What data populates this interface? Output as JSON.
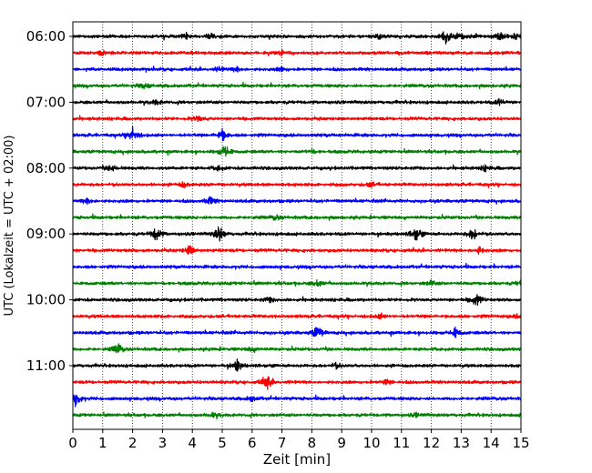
{
  "chart_data": {
    "type": "line",
    "xlabel": "Zeit  [min]",
    "ylabel": "UTC (Lokalzeit = UTC + 02:00)",
    "xlim": [
      0,
      15
    ],
    "x_ticks": [
      "0",
      "1",
      "2",
      "3",
      "4",
      "5",
      "6",
      "7",
      "8",
      "9",
      "10",
      "11",
      "12",
      "13",
      "14",
      "15"
    ],
    "y_ticks": [
      "06:00",
      "07:00",
      "08:00",
      "09:00",
      "10:00",
      "11:00"
    ],
    "grid_x": true,
    "trace_colors": [
      "#000000",
      "#ff0000",
      "#0000ff",
      "#008000"
    ],
    "trace_interval_min": 15,
    "traces": [
      {
        "start": "06:00",
        "events": [
          [
            3.8,
            0.35
          ],
          [
            4.6,
            0.3
          ],
          [
            10.3,
            0.35
          ],
          [
            12.5,
            0.9
          ],
          [
            13.0,
            0.3
          ],
          [
            14.3,
            0.5
          ],
          [
            14.8,
            0.3
          ]
        ]
      },
      {
        "start": "06:15",
        "events": [
          [
            1.0,
            0.3
          ],
          [
            7.0,
            0.3
          ]
        ]
      },
      {
        "start": "06:30",
        "events": [
          [
            4.9,
            0.25
          ],
          [
            5.5,
            0.3
          ],
          [
            7.0,
            0.25
          ]
        ]
      },
      {
        "start": "06:45",
        "events": [
          [
            2.4,
            0.3
          ]
        ]
      },
      {
        "start": "07:00",
        "events": [
          [
            2.8,
            0.3
          ],
          [
            14.3,
            0.4
          ]
        ]
      },
      {
        "start": "07:15",
        "events": [
          [
            4.2,
            0.4
          ]
        ]
      },
      {
        "start": "07:30",
        "events": [
          [
            2.0,
            1.0
          ],
          [
            5.0,
            0.8
          ]
        ]
      },
      {
        "start": "07:45",
        "events": [
          [
            5.1,
            0.9
          ],
          [
            8.0,
            0.3
          ]
        ]
      },
      {
        "start": "08:00",
        "events": [
          [
            1.3,
            0.4
          ],
          [
            4.9,
            0.3
          ],
          [
            13.8,
            0.3
          ]
        ]
      },
      {
        "start": "08:15",
        "events": [
          [
            3.7,
            0.3
          ],
          [
            10.0,
            0.3
          ]
        ]
      },
      {
        "start": "08:30",
        "events": [
          [
            0.5,
            0.4
          ],
          [
            4.6,
            0.5
          ]
        ]
      },
      {
        "start": "08:45",
        "events": [
          [
            6.8,
            0.3
          ]
        ]
      },
      {
        "start": "09:00",
        "events": [
          [
            2.8,
            0.9
          ],
          [
            4.9,
            1.0
          ],
          [
            11.5,
            0.9
          ],
          [
            13.4,
            0.8
          ]
        ]
      },
      {
        "start": "09:15",
        "events": [
          [
            3.9,
            0.6
          ],
          [
            13.6,
            0.4
          ]
        ]
      },
      {
        "start": "09:30",
        "events": []
      },
      {
        "start": "09:45",
        "events": [
          [
            8.2,
            0.4
          ],
          [
            12.0,
            0.3
          ],
          [
            15.0,
            0.35
          ]
        ]
      },
      {
        "start": "10:00",
        "events": [
          [
            13.5,
            0.9
          ],
          [
            6.6,
            0.3
          ]
        ]
      },
      {
        "start": "10:15",
        "events": [
          [
            10.3,
            0.3
          ],
          [
            14.9,
            0.2
          ]
        ]
      },
      {
        "start": "10:30",
        "events": [
          [
            8.2,
            0.9
          ],
          [
            12.8,
            0.6
          ]
        ]
      },
      {
        "start": "10:45",
        "events": [
          [
            1.5,
            0.7
          ],
          [
            6.0,
            0.3
          ]
        ]
      },
      {
        "start": "11:00",
        "events": [
          [
            5.5,
            0.7
          ],
          [
            8.8,
            0.3
          ]
        ]
      },
      {
        "start": "11:15",
        "events": [
          [
            6.5,
            0.9
          ],
          [
            10.5,
            0.3
          ]
        ]
      },
      {
        "start": "11:30",
        "events": [
          [
            0.1,
            1.0
          ],
          [
            6.0,
            0.3
          ]
        ]
      },
      {
        "start": "11:45",
        "events": [
          [
            4.7,
            0.3
          ],
          [
            11.5,
            0.2
          ]
        ]
      }
    ]
  }
}
